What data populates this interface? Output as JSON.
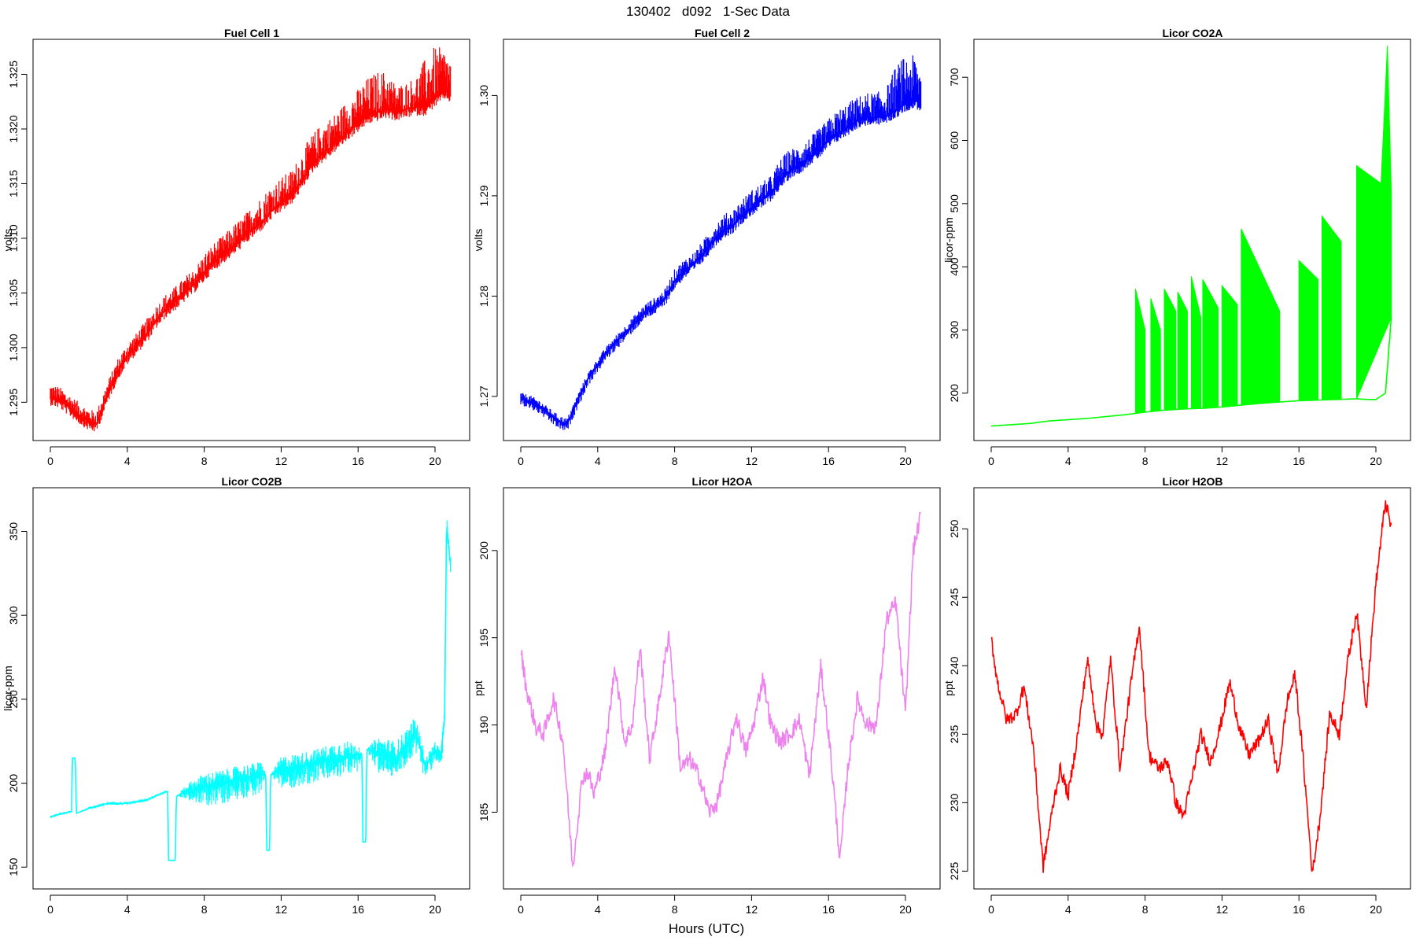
{
  "figure": {
    "title": "130402   d092   1-Sec Data",
    "xlabel": "Hours (UTC)"
  },
  "chart_data": [
    {
      "type": "line",
      "title": "Fuel Cell 1",
      "ylabel": "volts",
      "color": "#ff0000",
      "xlim": [
        -0.9,
        21.8
      ],
      "ylim": [
        1.2915,
        1.3282
      ],
      "xticks": [
        0,
        4,
        8,
        12,
        16,
        20
      ],
      "yticks": [
        1.295,
        1.3,
        1.305,
        1.31,
        1.315,
        1.32,
        1.325
      ],
      "ytick_labels": [
        "1.295",
        "1.300",
        "1.305",
        "1.310",
        "1.315",
        "1.320",
        "1.325"
      ],
      "x": [
        0,
        0.5,
        1,
        1.5,
        2,
        2.4,
        3,
        3.5,
        4,
        4.5,
        5,
        5.5,
        6,
        6.5,
        7,
        7.5,
        8,
        8.5,
        9,
        9.5,
        10,
        10.5,
        11,
        11.5,
        12,
        12.5,
        13,
        13.5,
        14,
        14.5,
        15,
        15.5,
        16,
        16.5,
        17,
        17.5,
        18,
        18.5,
        19,
        19.5,
        20,
        20.5,
        20.8
      ],
      "y": [
        1.2955,
        1.2952,
        1.2945,
        1.2938,
        1.2932,
        1.293,
        1.2958,
        1.2978,
        1.2992,
        1.3002,
        1.3012,
        1.3025,
        1.3035,
        1.3042,
        1.305,
        1.3058,
        1.3068,
        1.3078,
        1.3085,
        1.3092,
        1.31,
        1.3108,
        1.3115,
        1.3125,
        1.3132,
        1.3138,
        1.315,
        1.3165,
        1.3175,
        1.3182,
        1.319,
        1.3198,
        1.3205,
        1.3212,
        1.3215,
        1.3218,
        1.3215,
        1.3218,
        1.322,
        1.322,
        1.3228,
        1.3235,
        1.3232
      ],
      "noise_upper": [
        0.0012,
        0.0012,
        0.0012,
        0.0012,
        0.0012,
        0.0012,
        0.0012,
        0.0012,
        0.0012,
        0.0012,
        0.0014,
        0.0014,
        0.0014,
        0.0014,
        0.0015,
        0.0015,
        0.0018,
        0.0018,
        0.0018,
        0.002,
        0.002,
        0.0022,
        0.0024,
        0.0024,
        0.0024,
        0.0024,
        0.0026,
        0.0028,
        0.0028,
        0.0028,
        0.0028,
        0.003,
        0.0032,
        0.0035,
        0.0038,
        0.0035,
        0.0025,
        0.0025,
        0.0028,
        0.0045,
        0.0048,
        0.0038,
        0.0032
      ],
      "noise_lower": [
        0.0008,
        0.0008,
        0.0008,
        0.0008,
        0.0008,
        0.0008,
        0.0008,
        0.0008,
        0.0008,
        0.0008,
        0.0008,
        0.0008,
        0.0008,
        0.0008,
        0.0008,
        0.0008,
        0.0008,
        0.0008,
        0.0008,
        0.0008,
        0.0008,
        0.0008,
        0.0008,
        0.0008,
        0.0008,
        0.0008,
        0.0008,
        0.0008,
        0.0008,
        0.0008,
        0.0008,
        0.0008,
        0.0008,
        0.0008,
        0.0008,
        0.0008,
        0.0008,
        0.0008,
        0.0008,
        0.0008,
        0.0008,
        0.0008,
        0.0008
      ]
    },
    {
      "type": "line",
      "title": "Fuel Cell 2",
      "ylabel": "volts",
      "color": "#0000ff",
      "xlim": [
        -0.9,
        21.8
      ],
      "ylim": [
        1.2656,
        1.3056
      ],
      "xticks": [
        0,
        4,
        8,
        12,
        16,
        20
      ],
      "yticks": [
        1.27,
        1.28,
        1.29,
        1.3
      ],
      "ytick_labels": [
        "1.27",
        "1.28",
        "1.29",
        "1.30"
      ],
      "x": [
        0,
        0.5,
        1,
        1.5,
        2,
        2.4,
        3,
        3.5,
        4,
        4.5,
        5,
        5.5,
        6,
        6.5,
        7,
        7.5,
        8,
        8.5,
        9,
        9.5,
        10,
        10.5,
        11,
        11.5,
        12,
        12.5,
        13,
        13.5,
        14,
        14.5,
        15,
        15.5,
        16,
        16.5,
        17,
        17.5,
        18,
        18.5,
        19,
        19.5,
        20,
        20.5,
        20.8
      ],
      "y": [
        1.2698,
        1.2695,
        1.269,
        1.2682,
        1.2675,
        1.2672,
        1.2698,
        1.2718,
        1.2732,
        1.2745,
        1.2755,
        1.2765,
        1.2775,
        1.2785,
        1.279,
        1.2798,
        1.2815,
        1.2825,
        1.2832,
        1.2842,
        1.2855,
        1.2865,
        1.287,
        1.288,
        1.2888,
        1.2895,
        1.2902,
        1.2915,
        1.2925,
        1.293,
        1.2938,
        1.2945,
        1.2955,
        1.2962,
        1.2968,
        1.2975,
        1.2978,
        1.2978,
        1.298,
        1.2985,
        1.2992,
        1.2995,
        1.2992
      ],
      "noise_upper": [
        0.0006,
        0.0006,
        0.0006,
        0.0006,
        0.0006,
        0.0006,
        0.0006,
        0.0006,
        0.0006,
        0.0006,
        0.0007,
        0.0007,
        0.0008,
        0.0008,
        0.0009,
        0.0009,
        0.0012,
        0.0012,
        0.0012,
        0.0014,
        0.0015,
        0.0016,
        0.0016,
        0.0017,
        0.0018,
        0.0018,
        0.0018,
        0.0022,
        0.0022,
        0.002,
        0.002,
        0.0022,
        0.0022,
        0.0024,
        0.0025,
        0.0024,
        0.0025,
        0.0025,
        0.0028,
        0.0045,
        0.0048,
        0.0045,
        0.0035
      ],
      "noise_lower": [
        0.0008,
        0.0008,
        0.0008,
        0.0008,
        0.0008,
        0.0008,
        0.0008,
        0.0008,
        0.0008,
        0.0008,
        0.0008,
        0.0008,
        0.0008,
        0.0008,
        0.0008,
        0.0008,
        0.0008,
        0.0008,
        0.0008,
        0.0008,
        0.0008,
        0.0008,
        0.0008,
        0.0008,
        0.0008,
        0.0008,
        0.0008,
        0.0008,
        0.0008,
        0.0008,
        0.0008,
        0.0008,
        0.0008,
        0.0008,
        0.0008,
        0.0008,
        0.0008,
        0.0008,
        0.0008,
        0.0008,
        0.0008,
        0.0008,
        0.0008
      ]
    },
    {
      "type": "line",
      "title": "Licor CO2A",
      "ylabel": "licor-ppm",
      "color": "#00ff00",
      "xlim": [
        -0.9,
        21.8
      ],
      "ylim": [
        125,
        760
      ],
      "xticks": [
        0,
        4,
        8,
        12,
        16,
        20
      ],
      "yticks": [
        200,
        300,
        400,
        500,
        600,
        700
      ],
      "ytick_labels": [
        "200",
        "300",
        "400",
        "500",
        "600",
        "700"
      ],
      "x": [
        0,
        1,
        2,
        3,
        4,
        5,
        6,
        7,
        7.5,
        8,
        9,
        10,
        11,
        12,
        13,
        14,
        15,
        16,
        17,
        18,
        19,
        19.5,
        20,
        20.5,
        20.8
      ],
      "y": [
        148,
        150,
        152,
        156,
        158,
        160,
        163,
        166,
        168,
        170,
        173,
        175,
        176,
        178,
        181,
        184,
        186,
        188,
        189,
        190,
        191,
        190,
        190,
        200,
        320
      ],
      "bursts": [
        {
          "x0": 7.5,
          "x1": 8.0,
          "y0": 365,
          "y1": 300
        },
        {
          "x0": 8.3,
          "x1": 8.8,
          "y0": 350,
          "y1": 300
        },
        {
          "x0": 9.0,
          "x1": 9.6,
          "y0": 365,
          "y1": 330
        },
        {
          "x0": 9.7,
          "x1": 10.2,
          "y0": 360,
          "y1": 330
        },
        {
          "x0": 10.4,
          "x1": 10.9,
          "y0": 385,
          "y1": 320
        },
        {
          "x0": 11.0,
          "x1": 11.8,
          "y0": 380,
          "y1": 335
        },
        {
          "x0": 12.0,
          "x1": 12.8,
          "y0": 370,
          "y1": 340
        },
        {
          "x0": 13.0,
          "x1": 15.0,
          "y0": 460,
          "y1": 330
        },
        {
          "x0": 16.0,
          "x1": 17.0,
          "y0": 410,
          "y1": 380
        },
        {
          "x0": 17.2,
          "x1": 18.2,
          "y0": 480,
          "y1": 440
        },
        {
          "x0": 19.0,
          "x1": 20.8,
          "y0": 560,
          "y1": 520
        }
      ],
      "peak": {
        "x": 20.6,
        "y": 750
      }
    },
    {
      "type": "line",
      "title": "Licor CO2B",
      "ylabel": "licor-ppm",
      "color": "#00ffff",
      "xlim": [
        -0.9,
        21.8
      ],
      "ylim": [
        137,
        376
      ],
      "xticks": [
        0,
        4,
        8,
        12,
        16,
        20
      ],
      "yticks": [
        150,
        200,
        250,
        300,
        350
      ],
      "ytick_labels": [
        "150",
        "200",
        "250",
        "300",
        "350"
      ],
      "x": [
        0,
        1,
        1.1,
        1.15,
        1.3,
        1.35,
        2,
        3,
        4,
        5,
        6,
        6.1,
        6.15,
        6.5,
        6.55,
        7,
        8,
        9,
        10,
        11,
        11.2,
        11.25,
        11.4,
        11.45,
        12,
        13,
        14,
        15,
        16,
        16.2,
        16.25,
        16.4,
        16.45,
        17,
        18,
        19,
        19.5,
        20,
        20.3,
        20.5,
        20.6,
        20.8
      ],
      "y": [
        180,
        183,
        183,
        215,
        215,
        182,
        185,
        188,
        188,
        190,
        195,
        195,
        154,
        154,
        192,
        195,
        198,
        200,
        203,
        205,
        205,
        160,
        160,
        205,
        208,
        210,
        213,
        215,
        217,
        217,
        165,
        165,
        220,
        218,
        215,
        230,
        210,
        220,
        215,
        240,
        355,
        330
      ],
      "noise_upper": [
        1,
        1,
        0,
        0,
        0,
        0,
        1,
        1,
        1,
        1,
        1,
        0,
        0,
        0,
        0,
        4,
        8,
        8,
        8,
        8,
        0,
        0,
        0,
        0,
        8,
        8,
        8,
        10,
        8,
        0,
        0,
        0,
        0,
        10,
        10,
        10,
        5,
        5,
        5,
        5,
        5,
        5
      ],
      "noise_lower": [
        1,
        1,
        0,
        0,
        0,
        0,
        1,
        1,
        1,
        1,
        1,
        0,
        0,
        0,
        0,
        4,
        12,
        12,
        12,
        12,
        0,
        0,
        0,
        0,
        12,
        12,
        12,
        12,
        10,
        0,
        0,
        0,
        0,
        12,
        12,
        12,
        8,
        8,
        8,
        8,
        8,
        8
      ]
    },
    {
      "type": "line",
      "title": "Licor H2OA",
      "ylabel": "ppt",
      "color": "#ee82ee",
      "xlim": [
        -0.9,
        21.8
      ],
      "ylim": [
        180.6,
        203.6
      ],
      "xticks": [
        0,
        4,
        8,
        12,
        16,
        20
      ],
      "yticks": [
        185,
        190,
        195,
        200
      ],
      "ytick_labels": [
        "185",
        "190",
        "195",
        "200"
      ],
      "x": [
        0,
        0.3,
        0.8,
        1.2,
        1.7,
        2.2,
        2.7,
        3.2,
        3.5,
        3.8,
        4.4,
        4.9,
        5.4,
        5.8,
        6.2,
        6.7,
        7.2,
        7.7,
        8.3,
        8.8,
        9.3,
        9.8,
        10.2,
        10.7,
        11.2,
        11.7,
        12.1,
        12.6,
        13.0,
        13.5,
        14.0,
        14.5,
        15.0,
        15.6,
        16.1,
        16.6,
        17.0,
        17.5,
        18.0,
        18.5,
        19.0,
        19.5,
        20.0,
        20.4,
        20.8
      ],
      "y": [
        194.3,
        192.0,
        189.8,
        189.5,
        191.5,
        189.0,
        181.8,
        187.0,
        187.3,
        186.0,
        188.5,
        193.5,
        189.0,
        190.0,
        194.5,
        188.0,
        191.5,
        195.3,
        187.5,
        188.0,
        187.0,
        185.0,
        185.5,
        188.0,
        190.5,
        188.5,
        190.0,
        192.8,
        190.0,
        189.0,
        189.5,
        190.3,
        187.0,
        193.3,
        188.5,
        182.2,
        187.5,
        191.5,
        190.0,
        190.0,
        196.0,
        197.0,
        190.5,
        200.0,
        202.0
      ],
      "noise": 0.5
    },
    {
      "type": "line",
      "title": "Licor H2OB",
      "ylabel": "ppt",
      "color": "#ff0000",
      "xlim": [
        -0.9,
        21.8
      ],
      "ylim": [
        223.7,
        253.0
      ],
      "xticks": [
        0,
        4,
        8,
        12,
        16,
        20
      ],
      "yticks": [
        225,
        230,
        235,
        240,
        245,
        250
      ],
      "ytick_labels": [
        "225",
        "230",
        "235",
        "240",
        "245",
        "250"
      ],
      "x": [
        0,
        0.3,
        0.8,
        1.3,
        1.7,
        2.2,
        2.7,
        3.3,
        3.6,
        4.0,
        4.5,
        5.0,
        5.5,
        5.8,
        6.2,
        6.7,
        7.2,
        7.7,
        8.2,
        8.7,
        9.2,
        9.6,
        10.0,
        10.4,
        10.9,
        11.4,
        11.9,
        12.4,
        12.9,
        13.4,
        13.9,
        14.4,
        14.9,
        15.4,
        15.8,
        16.2,
        16.7,
        17.1,
        17.6,
        18.1,
        18.5,
        19.0,
        19.5,
        20.0,
        20.5,
        20.8
      ],
      "y": [
        242.0,
        239.0,
        236.0,
        236.5,
        238.5,
        234.0,
        225.3,
        230.5,
        232.5,
        230.5,
        235.0,
        240.5,
        235.5,
        235.0,
        240.5,
        232.5,
        238.0,
        243.0,
        233.5,
        232.5,
        233.0,
        230.0,
        229.0,
        231.5,
        235.0,
        233.0,
        235.5,
        238.8,
        235.5,
        233.5,
        234.5,
        236.0,
        232.0,
        237.5,
        239.3,
        233.5,
        224.8,
        229.0,
        236.5,
        235.0,
        240.0,
        244.0,
        237.0,
        246.0,
        252.0,
        250.0
      ],
      "noise": 0.5
    }
  ]
}
